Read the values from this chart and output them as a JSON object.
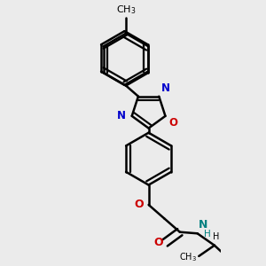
{
  "background_color": "#ebebeb",
  "line_color": "#000000",
  "bond_width": 1.8,
  "atom_colors": {
    "N": "#0000cc",
    "O": "#cc0000",
    "NH": "#008080"
  },
  "font_size": 9,
  "fig_size": [
    3.0,
    3.0
  ],
  "dpi": 100
}
